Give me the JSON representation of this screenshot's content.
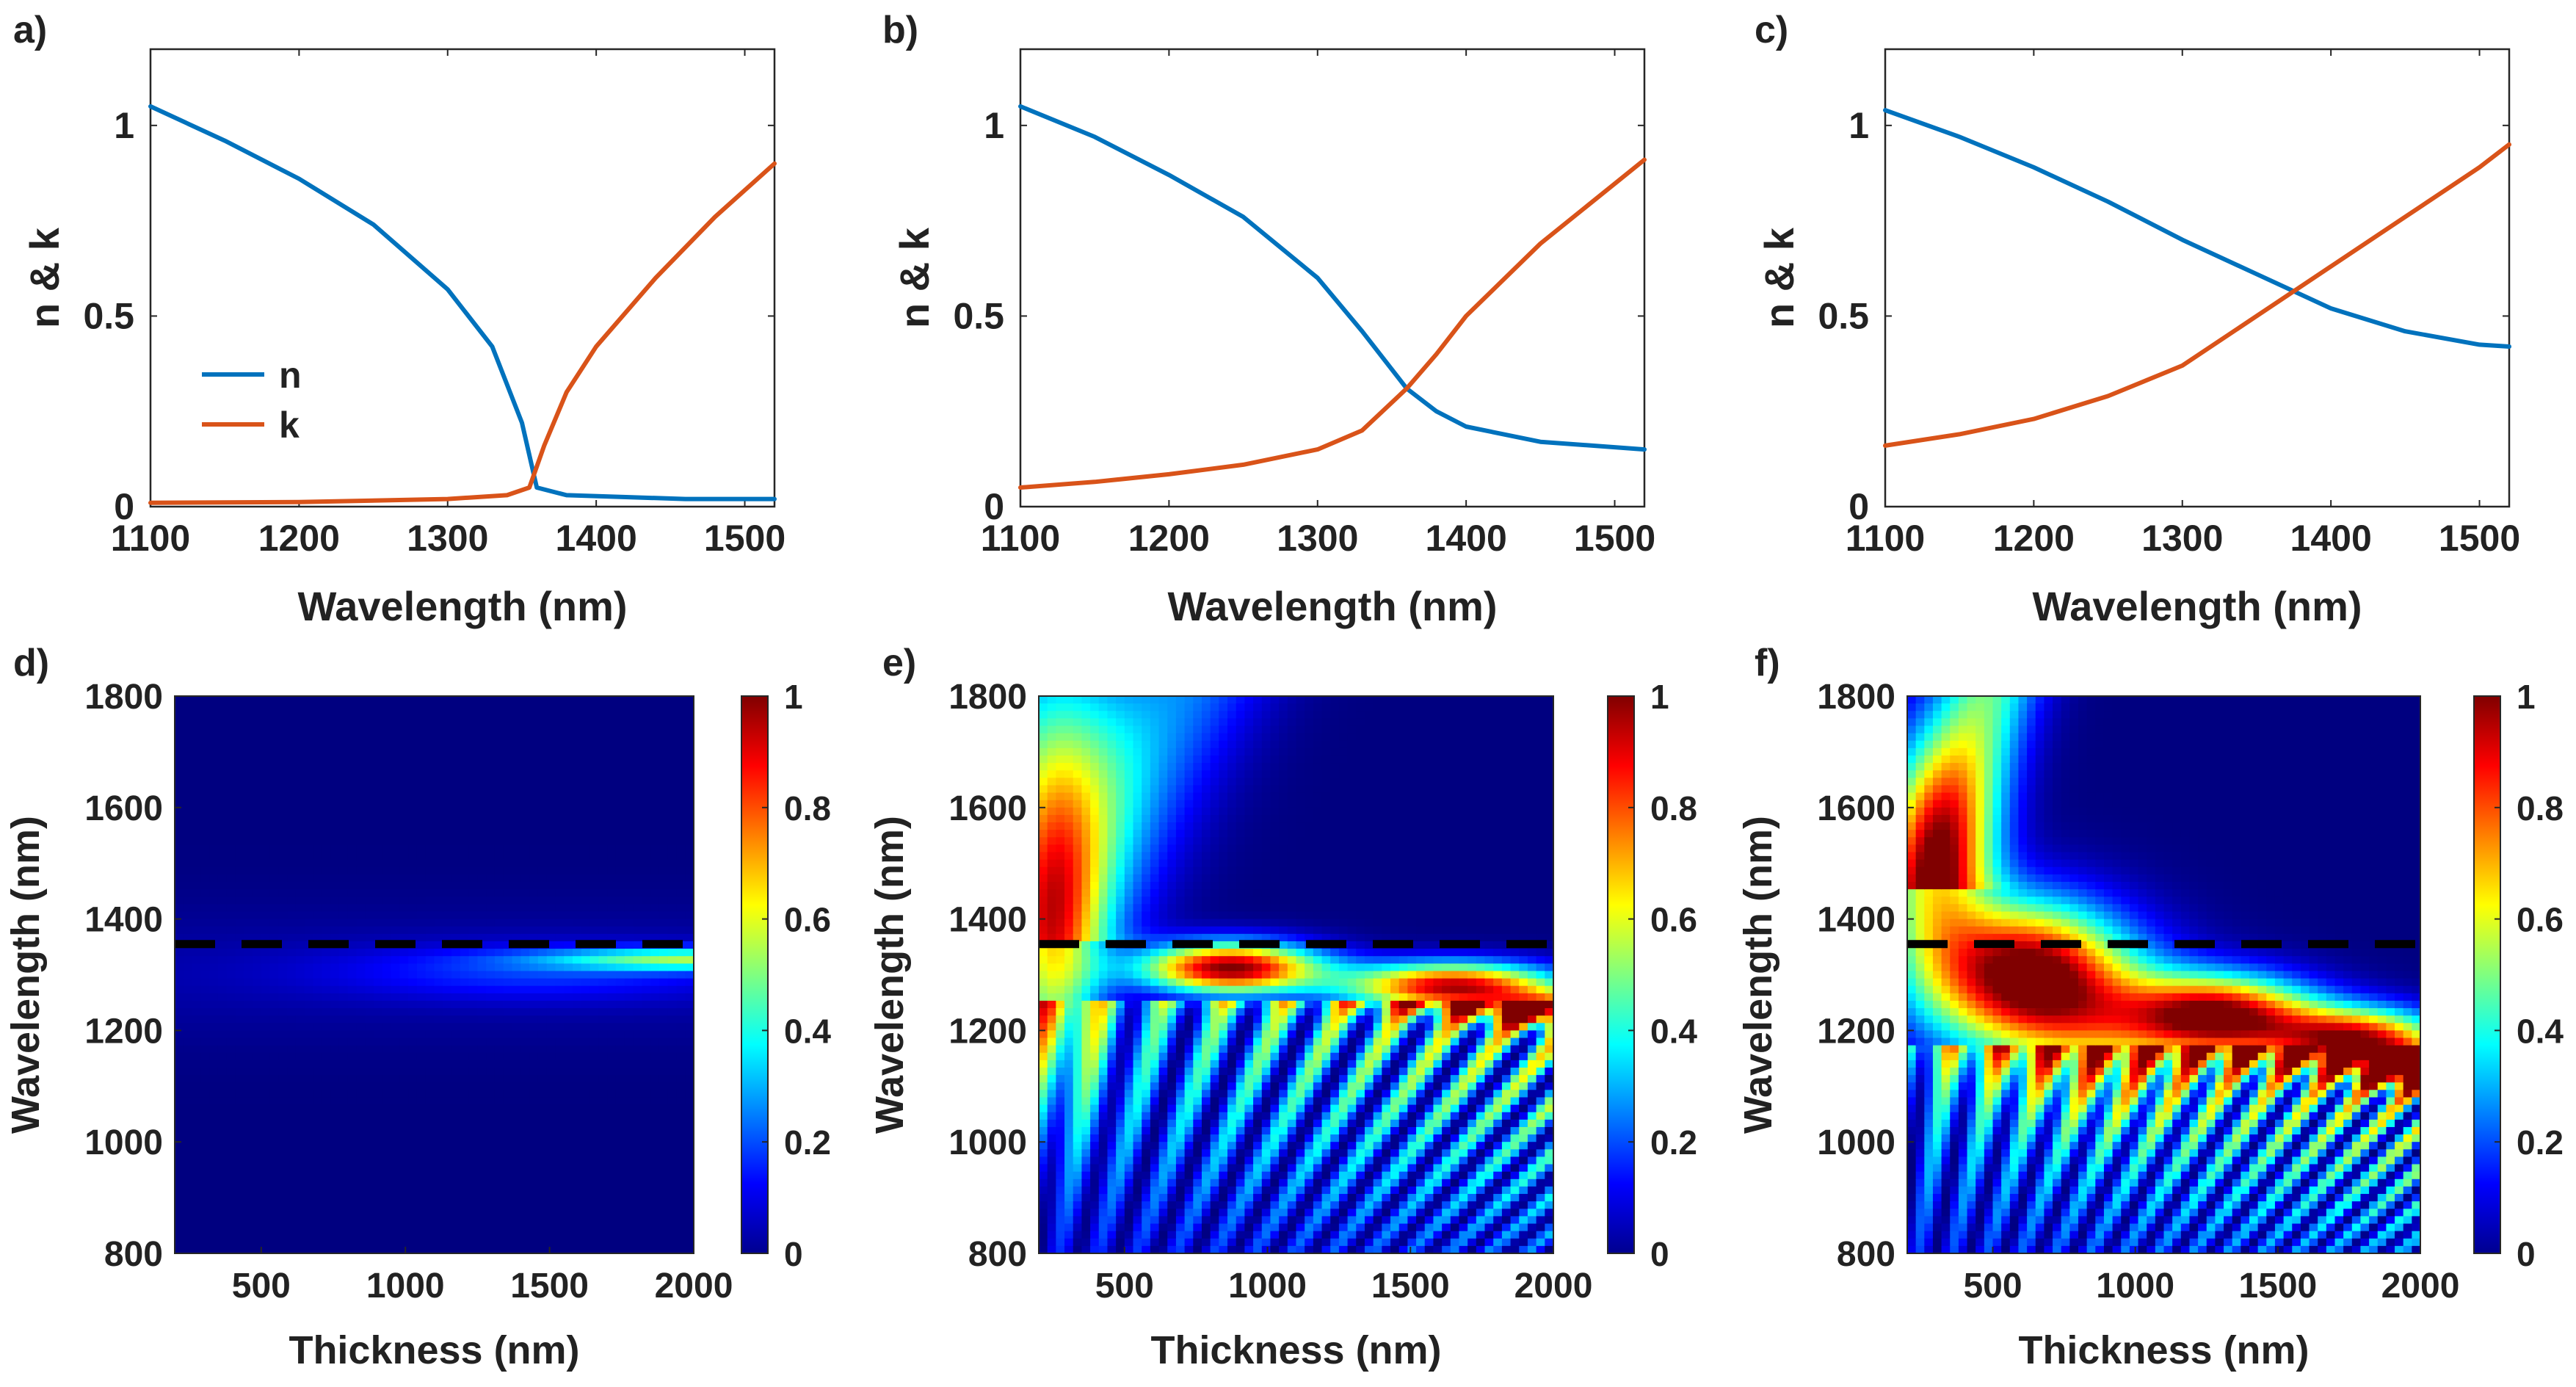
{
  "figure": {
    "panel_letters": [
      "a)",
      "b)",
      "c)",
      "d)",
      "e)",
      "f)"
    ]
  },
  "colors": {
    "n_series": "#0072BD",
    "k_series": "#D95319",
    "dashed_line": "#000000",
    "axis": "#262626"
  },
  "chart_data": [
    {
      "panel": "a)",
      "type": "line",
      "xlabel": "Wavelength (nm)",
      "ylabel": "n & k",
      "xlim": [
        1100,
        1520
      ],
      "ylim": [
        0,
        1.2
      ],
      "xticks": [
        1100,
        1200,
        1300,
        1400,
        1500
      ],
      "yticks": [
        0,
        0.5,
        1
      ],
      "ytick_labels": [
        "0",
        "0.5",
        "1"
      ],
      "legend": {
        "position": "lower-left",
        "entries": [
          "n",
          "k"
        ]
      },
      "series": [
        {
          "name": "n",
          "x": [
            1100,
            1150,
            1200,
            1250,
            1300,
            1330,
            1350,
            1360,
            1380,
            1420,
            1460,
            1520
          ],
          "y": [
            1.05,
            0.96,
            0.86,
            0.74,
            0.57,
            0.42,
            0.22,
            0.05,
            0.03,
            0.025,
            0.02,
            0.02
          ]
        },
        {
          "name": "k",
          "x": [
            1100,
            1200,
            1300,
            1340,
            1355,
            1365,
            1380,
            1400,
            1440,
            1480,
            1520
          ],
          "y": [
            0.01,
            0.012,
            0.02,
            0.03,
            0.05,
            0.16,
            0.3,
            0.42,
            0.6,
            0.76,
            0.9
          ]
        }
      ]
    },
    {
      "panel": "b)",
      "type": "line",
      "xlabel": "Wavelength (nm)",
      "ylabel": "n & k",
      "xlim": [
        1100,
        1520
      ],
      "ylim": [
        0,
        1.2
      ],
      "xticks": [
        1100,
        1200,
        1300,
        1400,
        1500
      ],
      "yticks": [
        0,
        0.5,
        1
      ],
      "ytick_labels": [
        "0",
        "0.5",
        "1"
      ],
      "series": [
        {
          "name": "n",
          "x": [
            1100,
            1150,
            1200,
            1250,
            1300,
            1330,
            1360,
            1380,
            1400,
            1450,
            1520
          ],
          "y": [
            1.05,
            0.97,
            0.87,
            0.76,
            0.6,
            0.46,
            0.31,
            0.25,
            0.21,
            0.17,
            0.15
          ]
        },
        {
          "name": "k",
          "x": [
            1100,
            1150,
            1200,
            1250,
            1300,
            1330,
            1360,
            1380,
            1400,
            1450,
            1520
          ],
          "y": [
            0.05,
            0.065,
            0.085,
            0.11,
            0.15,
            0.2,
            0.31,
            0.4,
            0.5,
            0.69,
            0.91
          ]
        }
      ]
    },
    {
      "panel": "c)",
      "type": "line",
      "xlabel": "Wavelength (nm)",
      "ylabel": "n & k",
      "xlim": [
        1100,
        1520
      ],
      "ylim": [
        0,
        1.2
      ],
      "xticks": [
        1100,
        1200,
        1300,
        1400,
        1500
      ],
      "yticks": [
        0,
        0.5,
        1
      ],
      "ytick_labels": [
        "0",
        "0.5",
        "1"
      ],
      "series": [
        {
          "name": "n",
          "x": [
            1100,
            1150,
            1200,
            1250,
            1300,
            1350,
            1400,
            1450,
            1500,
            1520
          ],
          "y": [
            1.04,
            0.97,
            0.89,
            0.8,
            0.7,
            0.61,
            0.52,
            0.46,
            0.425,
            0.42
          ]
        },
        {
          "name": "k",
          "x": [
            1100,
            1150,
            1200,
            1250,
            1300,
            1350,
            1400,
            1450,
            1500,
            1520
          ],
          "y": [
            0.16,
            0.19,
            0.23,
            0.29,
            0.37,
            0.5,
            0.63,
            0.76,
            0.89,
            0.95
          ]
        }
      ]
    },
    {
      "panel": "d)",
      "type": "heatmap",
      "xlabel": "Thickness (nm)",
      "ylabel": "Wavelength (nm)",
      "xlim": [
        200,
        2000
      ],
      "ylim": [
        800,
        1800
      ],
      "xticks": [
        500,
        1000,
        1500,
        2000
      ],
      "yticks": [
        800,
        1000,
        1200,
        1400,
        1600,
        1800
      ],
      "colorbar": {
        "range": [
          0,
          1
        ],
        "ticks": [
          0,
          0.2,
          0.4,
          0.6,
          0.8,
          1
        ],
        "tick_labels": [
          "0",
          "0.2",
          "0.4",
          "0.6",
          "0.8",
          "1"
        ]
      },
      "dashed_line_wavelength": 1355,
      "description_values": {
        "max_value": 0.45,
        "max_near": [
          2000,
          1330
        ]
      }
    },
    {
      "panel": "e)",
      "type": "heatmap",
      "xlabel": "Thickness (nm)",
      "ylabel": "Wavelength (nm)",
      "xlim": [
        200,
        2000
      ],
      "ylim": [
        800,
        1800
      ],
      "xticks": [
        500,
        1000,
        1500,
        2000
      ],
      "yticks": [
        800,
        1000,
        1200,
        1400,
        1600,
        1800
      ],
      "colorbar": {
        "range": [
          0,
          1
        ],
        "ticks": [
          0,
          0.2,
          0.4,
          0.6,
          0.8,
          1
        ],
        "tick_labels": [
          "0",
          "0.2",
          "0.4",
          "0.6",
          "0.8",
          "1"
        ]
      },
      "dashed_line_wavelength": 1355,
      "description_values": {
        "peaks": [
          [
            870,
            1310,
            1.0
          ],
          [
            1650,
            1275,
            0.95
          ],
          [
            1950,
            1235,
            0.8
          ]
        ]
      }
    },
    {
      "panel": "f)",
      "type": "heatmap",
      "xlabel": "Thickness (nm)",
      "ylabel": "Wavelength (nm)",
      "xlim": [
        200,
        2000
      ],
      "ylim": [
        800,
        1800
      ],
      "xticks": [
        500,
        1000,
        1500,
        2000
      ],
      "yticks": [
        800,
        1000,
        1200,
        1400,
        1600,
        1800
      ],
      "colorbar": {
        "range": [
          0,
          1
        ],
        "ticks": [
          0,
          0.2,
          0.4,
          0.6,
          0.8,
          1
        ],
        "tick_labels": [
          "0",
          "0.2",
          "0.4",
          "0.6",
          "0.8",
          "1"
        ]
      },
      "dashed_line_wavelength": 1355,
      "description_values": {
        "peaks": [
          [
            620,
            1300,
            1.0
          ],
          [
            1300,
            1225,
            0.98
          ],
          [
            1780,
            1180,
            0.95
          ],
          [
            1950,
            1130,
            0.85
          ]
        ]
      }
    }
  ]
}
